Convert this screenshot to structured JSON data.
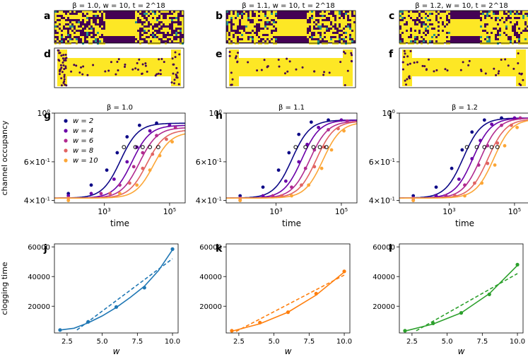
{
  "figure": {
    "panel_letters": [
      "a",
      "b",
      "c",
      "d",
      "e",
      "f",
      "g",
      "h",
      "i",
      "j",
      "k",
      "l"
    ],
    "snapshot_titles": [
      "β = 1.0, w = 10, t = 2^18",
      "β = 1.1, w = 10, t = 2^18",
      "β = 1.2, w = 10, t = 2^18"
    ],
    "colors": {
      "lattice_bg": "#440154",
      "lattice_fill": "#fde725",
      "lattice_mid": "#21918c",
      "series": [
        "#0d0887",
        "#6a00a8",
        "#b12a90",
        "#e16462",
        "#fca636"
      ],
      "clog": [
        "#1f77b4",
        "#ff7f0e",
        "#2ca02c"
      ]
    }
  },
  "chart_data": [
    {
      "type": "line",
      "title": "β = 1.0",
      "ylabel": "channel occupancy",
      "xlabel": "time",
      "xscale": "log",
      "yscale": "log",
      "xlim": [
        30,
        300000
      ],
      "ylim": [
        0.39,
        1.0
      ],
      "x_ticks": [
        "10^3",
        "10^5"
      ],
      "y_ticks": [
        "4×10^-1",
        "6×10^-1",
        "10^0"
      ],
      "legend": [
        "w = 2",
        "w = 4",
        "w = 6",
        "w = 8",
        "w = 10"
      ],
      "series": [
        {
          "name": "w = 2",
          "plateau": 0.9,
          "mid": 4000,
          "points": [
            [
              80,
              0.43
            ],
            [
              400,
              0.47
            ],
            [
              1200,
              0.55
            ],
            [
              2500,
              0.66
            ],
            [
              5000,
              0.78
            ],
            [
              12000,
              0.88
            ],
            [
              40000,
              0.9
            ]
          ]
        },
        {
          "name": "w = 4",
          "plateau": 0.88,
          "mid": 9000,
          "points": [
            [
              80,
              0.42
            ],
            [
              400,
              0.43
            ],
            [
              2000,
              0.5
            ],
            [
              5000,
              0.6
            ],
            [
              10000,
              0.7
            ],
            [
              25000,
              0.83
            ],
            [
              100000,
              0.88
            ]
          ]
        },
        {
          "name": "w = 6",
          "plateau": 0.86,
          "mid": 15000,
          "points": [
            [
              80,
              0.41
            ],
            [
              800,
              0.43
            ],
            [
              3000,
              0.47
            ],
            [
              8000,
              0.57
            ],
            [
              15000,
              0.66
            ],
            [
              40000,
              0.79
            ],
            [
              150000,
              0.86
            ]
          ]
        },
        {
          "name": "w = 8",
          "plateau": 0.84,
          "mid": 25000,
          "points": [
            [
              80,
              0.41
            ],
            [
              1500,
              0.43
            ],
            [
              6000,
              0.48
            ],
            [
              15000,
              0.56
            ],
            [
              30000,
              0.65
            ],
            [
              80000,
              0.76
            ]
          ]
        },
        {
          "name": "w = 10",
          "plateau": 0.82,
          "mid": 40000,
          "points": [
            [
              80,
              0.4
            ],
            [
              3000,
              0.43
            ],
            [
              10000,
              0.47
            ],
            [
              25000,
              0.55
            ],
            [
              50000,
              0.64
            ],
            [
              120000,
              0.74
            ]
          ]
        }
      ],
      "clog_markers": [
        [
          4000,
          0.7
        ],
        [
          9000,
          0.7
        ],
        [
          15000,
          0.7
        ],
        [
          25000,
          0.7
        ],
        [
          45000,
          0.7
        ]
      ]
    },
    {
      "type": "line",
      "title": "β = 1.1",
      "xlabel": "time",
      "xscale": "log",
      "yscale": "log",
      "xlim": [
        30,
        300000
      ],
      "ylim": [
        0.39,
        1.0
      ],
      "x_ticks": [
        "10^3",
        "10^5"
      ],
      "y_ticks": [
        "4×10^-1",
        "6×10^-1",
        "10^0"
      ],
      "series": [
        {
          "name": "w = 2",
          "plateau": 0.93,
          "mid": 4000,
          "points": [
            [
              80,
              0.42
            ],
            [
              400,
              0.46
            ],
            [
              1200,
              0.55
            ],
            [
              2500,
              0.66
            ],
            [
              5000,
              0.8
            ],
            [
              12000,
              0.91
            ],
            [
              40000,
              0.93
            ]
          ]
        },
        {
          "name": "w = 4",
          "plateau": 0.93,
          "mid": 8000,
          "points": [
            [
              80,
              0.41
            ],
            [
              400,
              0.42
            ],
            [
              2000,
              0.49
            ],
            [
              5000,
              0.6
            ],
            [
              9000,
              0.72
            ],
            [
              20000,
              0.86
            ],
            [
              100000,
              0.93
            ]
          ]
        },
        {
          "name": "w = 6",
          "plateau": 0.92,
          "mid": 14000,
          "points": [
            [
              80,
              0.41
            ],
            [
              800,
              0.42
            ],
            [
              3000,
              0.46
            ],
            [
              8000,
              0.56
            ],
            [
              15000,
              0.68
            ],
            [
              40000,
              0.84
            ],
            [
              150000,
              0.92
            ]
          ]
        },
        {
          "name": "w = 8",
          "plateau": 0.92,
          "mid": 22000,
          "points": [
            [
              80,
              0.4
            ],
            [
              1500,
              0.42
            ],
            [
              6000,
              0.47
            ],
            [
              15000,
              0.57
            ],
            [
              30000,
              0.7
            ],
            [
              80000,
              0.85
            ]
          ]
        },
        {
          "name": "w = 10",
          "plateau": 0.91,
          "mid": 35000,
          "points": [
            [
              80,
              0.4
            ],
            [
              3000,
              0.42
            ],
            [
              10000,
              0.47
            ],
            [
              25000,
              0.56
            ],
            [
              50000,
              0.68
            ],
            [
              120000,
              0.83
            ]
          ]
        }
      ],
      "clog_markers": [
        [
          4000,
          0.7
        ],
        [
          8000,
          0.7
        ],
        [
          14000,
          0.7
        ],
        [
          22000,
          0.7
        ],
        [
          35000,
          0.7
        ]
      ]
    },
    {
      "type": "line",
      "title": "β = 1.2",
      "xlabel": "time",
      "xscale": "log",
      "yscale": "log",
      "xlim": [
        30,
        300000
      ],
      "ylim": [
        0.39,
        1.0
      ],
      "x_ticks": [
        "10^3",
        "10^5"
      ],
      "y_ticks": [
        "4×10^-1",
        "6×10^-1",
        "10^0"
      ],
      "series": [
        {
          "name": "w = 2",
          "plateau": 0.95,
          "mid": 3500,
          "points": [
            [
              80,
              0.42
            ],
            [
              400,
              0.46
            ],
            [
              1200,
              0.56
            ],
            [
              2500,
              0.68
            ],
            [
              5000,
              0.82
            ],
            [
              12000,
              0.93
            ],
            [
              40000,
              0.95
            ]
          ]
        },
        {
          "name": "w = 4",
          "plateau": 0.95,
          "mid": 7000,
          "points": [
            [
              80,
              0.41
            ],
            [
              400,
              0.42
            ],
            [
              2000,
              0.5
            ],
            [
              5000,
              0.62
            ],
            [
              9000,
              0.75
            ],
            [
              20000,
              0.89
            ],
            [
              100000,
              0.95
            ]
          ]
        },
        {
          "name": "w = 6",
          "plateau": 0.95,
          "mid": 12000,
          "points": [
            [
              80,
              0.41
            ],
            [
              800,
              0.42
            ],
            [
              3000,
              0.47
            ],
            [
              8000,
              0.58
            ],
            [
              15000,
              0.71
            ],
            [
              40000,
              0.88
            ],
            [
              150000,
              0.95
            ]
          ]
        },
        {
          "name": "w = 8",
          "plateau": 0.94,
          "mid": 20000,
          "points": [
            [
              80,
              0.4
            ],
            [
              1500,
              0.42
            ],
            [
              6000,
              0.48
            ],
            [
              15000,
              0.59
            ],
            [
              30000,
              0.73
            ],
            [
              80000,
              0.88
            ]
          ]
        },
        {
          "name": "w = 10",
          "plateau": 0.94,
          "mid": 30000,
          "points": [
            [
              80,
              0.4
            ],
            [
              3000,
              0.42
            ],
            [
              10000,
              0.48
            ],
            [
              25000,
              0.58
            ],
            [
              50000,
              0.71
            ],
            [
              120000,
              0.86
            ]
          ]
        }
      ],
      "clog_markers": [
        [
          3500,
          0.7
        ],
        [
          7000,
          0.7
        ],
        [
          12000,
          0.7
        ],
        [
          20000,
          0.7
        ],
        [
          30000,
          0.7
        ]
      ]
    },
    {
      "type": "scatter",
      "ylabel": "clogging time",
      "xlabel": "w",
      "xlim": [
        1.6,
        10.4
      ],
      "ylim": [
        2000,
        62000
      ],
      "x_ticks": [
        "2.5",
        "5.0",
        "7.5",
        "10.0"
      ],
      "y_ticks": [
        "20000",
        "40000",
        "60000"
      ],
      "x": [
        2,
        4,
        6,
        8,
        10
      ],
      "y": [
        4000,
        9500,
        19500,
        32500,
        58500
      ],
      "fit_curve": [
        [
          2,
          4000
        ],
        [
          3,
          5200
        ],
        [
          4,
          8800
        ],
        [
          5,
          13500
        ],
        [
          6,
          19200
        ],
        [
          7,
          26000
        ],
        [
          8,
          33500
        ],
        [
          9,
          44000
        ],
        [
          10,
          58000
        ]
      ],
      "fit_line": [
        [
          3.2,
          4000
        ],
        [
          10,
          52000
        ]
      ]
    },
    {
      "type": "scatter",
      "xlabel": "w",
      "xlim": [
        1.6,
        10.4
      ],
      "ylim": [
        2000,
        62000
      ],
      "x_ticks": [
        "2.5",
        "5.0",
        "7.5",
        "10.0"
      ],
      "y_ticks": [
        "20000",
        "40000",
        "60000"
      ],
      "x": [
        2,
        4,
        6,
        8,
        10
      ],
      "y": [
        3500,
        9000,
        16000,
        28500,
        43500
      ],
      "fit_curve": [
        [
          2,
          3200
        ],
        [
          4,
          8200
        ],
        [
          6,
          16000
        ],
        [
          8,
          27500
        ],
        [
          10,
          43000
        ]
      ],
      "fit_line": [
        [
          2.3,
          3000
        ],
        [
          10,
          41000
        ]
      ]
    },
    {
      "type": "scatter",
      "xlabel": "w",
      "xlim": [
        1.6,
        10.4
      ],
      "ylim": [
        2000,
        62000
      ],
      "x_ticks": [
        "2.5",
        "5.0",
        "7.5",
        "10.0"
      ],
      "y_ticks": [
        "20000",
        "40000",
        "60000"
      ],
      "x": [
        2,
        4,
        6,
        8,
        10
      ],
      "y": [
        3500,
        8500,
        15500,
        28000,
        48000
      ],
      "fit_curve": [
        [
          2,
          3300
        ],
        [
          4,
          8000
        ],
        [
          6,
          15500
        ],
        [
          8,
          28500
        ],
        [
          10,
          47500
        ]
      ],
      "fit_line": [
        [
          2.8,
          3500
        ],
        [
          10,
          42000
        ]
      ]
    }
  ]
}
